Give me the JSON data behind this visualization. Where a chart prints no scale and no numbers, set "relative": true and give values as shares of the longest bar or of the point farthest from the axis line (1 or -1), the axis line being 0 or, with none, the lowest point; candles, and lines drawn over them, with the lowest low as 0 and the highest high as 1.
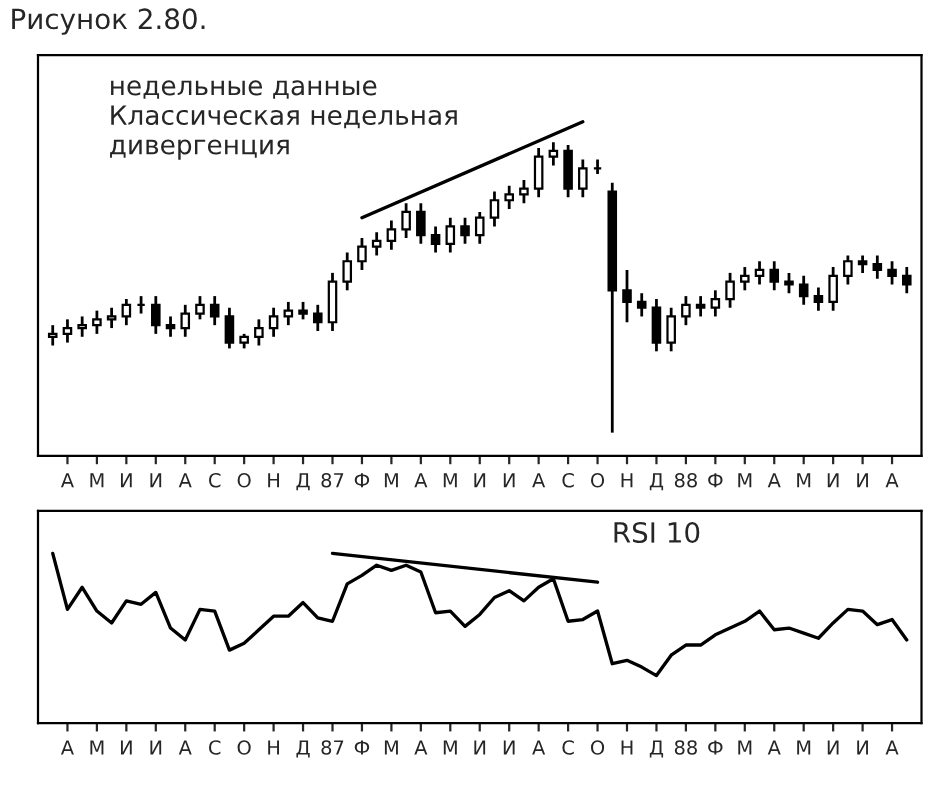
{
  "chart_data": [
    {
      "type": "candlestick",
      "title": "Рисунок 2.80.",
      "annotations": [
        "недельные данные\nКлассическая недельная\nдивергенция"
      ],
      "relative": true,
      "tick_labels": "x",
      "grid": false,
      "categories": [
        null,
        "А",
        null,
        "М",
        null,
        "И",
        null,
        "И",
        null,
        "А",
        null,
        "С",
        null,
        "О",
        null,
        "Н",
        null,
        "Д",
        null,
        "87",
        null,
        "Ф",
        null,
        "М",
        null,
        "А",
        null,
        "М",
        null,
        "И",
        null,
        "И",
        null,
        "А",
        null,
        "С",
        null,
        "О",
        null,
        "Н",
        null,
        "Д",
        null,
        "88",
        null,
        "Ф",
        null,
        "М",
        null,
        "А",
        null,
        "М",
        null,
        "И",
        null,
        "И",
        null,
        "А",
        null
      ],
      "color": "#000000",
      "ohlc": [
        [
          0.33,
          0.37,
          0.3,
          0.34
        ],
        [
          0.34,
          0.39,
          0.31,
          0.36
        ],
        [
          0.36,
          0.4,
          0.33,
          0.37
        ],
        [
          0.37,
          0.42,
          0.34,
          0.39
        ],
        [
          0.39,
          0.43,
          0.36,
          0.4
        ],
        [
          0.4,
          0.46,
          0.37,
          0.44
        ],
        [
          0.44,
          0.47,
          0.41,
          0.44
        ],
        [
          0.44,
          0.47,
          0.34,
          0.37
        ],
        [
          0.37,
          0.4,
          0.33,
          0.36
        ],
        [
          0.36,
          0.44,
          0.33,
          0.41
        ],
        [
          0.41,
          0.47,
          0.39,
          0.44
        ],
        [
          0.44,
          0.47,
          0.37,
          0.4
        ],
        [
          0.4,
          0.43,
          0.29,
          0.31
        ],
        [
          0.31,
          0.34,
          0.29,
          0.33
        ],
        [
          0.33,
          0.39,
          0.3,
          0.36
        ],
        [
          0.36,
          0.43,
          0.33,
          0.4
        ],
        [
          0.4,
          0.45,
          0.37,
          0.42
        ],
        [
          0.42,
          0.45,
          0.39,
          0.41
        ],
        [
          0.41,
          0.44,
          0.35,
          0.38
        ],
        [
          0.38,
          0.55,
          0.35,
          0.52
        ],
        [
          0.52,
          0.62,
          0.49,
          0.59
        ],
        [
          0.59,
          0.67,
          0.56,
          0.64
        ],
        [
          0.64,
          0.69,
          0.61,
          0.66
        ],
        [
          0.66,
          0.73,
          0.63,
          0.7
        ],
        [
          0.7,
          0.79,
          0.67,
          0.76
        ],
        [
          0.76,
          0.79,
          0.65,
          0.68
        ],
        [
          0.68,
          0.71,
          0.62,
          0.65
        ],
        [
          0.65,
          0.74,
          0.62,
          0.71
        ],
        [
          0.71,
          0.74,
          0.65,
          0.68
        ],
        [
          0.68,
          0.76,
          0.65,
          0.74
        ],
        [
          0.74,
          0.83,
          0.71,
          0.8
        ],
        [
          0.8,
          0.85,
          0.77,
          0.82
        ],
        [
          0.82,
          0.87,
          0.79,
          0.84
        ],
        [
          0.84,
          0.98,
          0.81,
          0.95
        ],
        [
          0.95,
          1.0,
          0.92,
          0.97
        ],
        [
          0.97,
          0.99,
          0.81,
          0.84
        ],
        [
          0.84,
          0.94,
          0.81,
          0.91
        ],
        [
          0.91,
          0.94,
          0.89,
          0.91
        ],
        [
          0.83,
          0.86,
          0.0,
          0.49
        ],
        [
          0.49,
          0.56,
          0.38,
          0.45
        ],
        [
          0.45,
          0.48,
          0.4,
          0.43
        ],
        [
          0.43,
          0.46,
          0.28,
          0.31
        ],
        [
          0.31,
          0.43,
          0.28,
          0.4
        ],
        [
          0.4,
          0.47,
          0.37,
          0.44
        ],
        [
          0.44,
          0.47,
          0.4,
          0.43
        ],
        [
          0.43,
          0.49,
          0.4,
          0.46
        ],
        [
          0.46,
          0.55,
          0.43,
          0.52
        ],
        [
          0.52,
          0.57,
          0.49,
          0.54
        ],
        [
          0.54,
          0.59,
          0.51,
          0.56
        ],
        [
          0.56,
          0.59,
          0.49,
          0.52
        ],
        [
          0.52,
          0.55,
          0.48,
          0.51
        ],
        [
          0.51,
          0.54,
          0.44,
          0.47
        ],
        [
          0.47,
          0.5,
          0.42,
          0.45
        ],
        [
          0.45,
          0.57,
          0.42,
          0.54
        ],
        [
          0.54,
          0.61,
          0.51,
          0.59
        ],
        [
          0.59,
          0.61,
          0.55,
          0.58
        ],
        [
          0.58,
          0.61,
          0.53,
          0.56
        ],
        [
          0.56,
          0.59,
          0.51,
          0.54
        ],
        [
          0.54,
          0.57,
          0.48,
          0.51
        ]
      ],
      "series": [
        {
          "type": "line",
          "color": "#000000",
          "values": [
            null,
            null,
            null,
            null,
            null,
            null,
            null,
            null,
            null,
            null,
            null,
            null,
            null,
            null,
            null,
            null,
            null,
            null,
            null,
            null,
            null,
            0.74,
            null,
            null,
            null,
            null,
            null,
            null,
            null,
            null,
            null,
            null,
            null,
            null,
            null,
            null,
            1.07,
            null,
            null,
            null,
            null,
            null,
            null,
            null,
            null,
            null,
            null,
            null,
            null,
            null,
            null,
            null,
            null,
            null,
            null,
            null,
            null,
            null,
            null
          ]
        }
      ]
    },
    {
      "type": "line",
      "annotations": [
        "RSI 10"
      ],
      "relative": true,
      "tick_labels": "x",
      "grid": false,
      "categories": [
        null,
        "А",
        null,
        "М",
        null,
        "И",
        null,
        "И",
        null,
        "А",
        null,
        "С",
        null,
        "О",
        null,
        "Н",
        null,
        "Д",
        null,
        "87",
        null,
        "Ф",
        null,
        "М",
        null,
        "А",
        null,
        "М",
        null,
        "И",
        null,
        "И",
        null,
        "А",
        null,
        "С",
        null,
        "О",
        null,
        "Н",
        null,
        "Д",
        null,
        "88",
        null,
        "Ф",
        null,
        "М",
        null,
        "А",
        null,
        "М",
        null,
        "И",
        null,
        "И",
        null,
        "А",
        null
      ],
      "series": [
        {
          "color": "#000000",
          "values": [
            1.0,
            0.67,
            0.8,
            0.66,
            0.59,
            0.72,
            0.7,
            0.77,
            0.56,
            0.49,
            0.67,
            0.66,
            0.43,
            0.47,
            0.55,
            0.63,
            0.63,
            0.71,
            0.62,
            0.6,
            0.82,
            0.87,
            0.93,
            0.9,
            0.93,
            0.89,
            0.65,
            0.66,
            0.57,
            0.64,
            0.74,
            0.78,
            0.72,
            0.8,
            0.85,
            0.6,
            0.61,
            0.66,
            0.35,
            0.37,
            0.33,
            0.28,
            0.4,
            0.46,
            0.46,
            0.52,
            0.56,
            0.6,
            0.66,
            0.55,
            0.56,
            0.53,
            0.5,
            0.59,
            0.67,
            0.66,
            0.58,
            0.61,
            0.49
          ]
        },
        {
          "type": "line",
          "color": "#000000",
          "values": [
            null,
            null,
            null,
            null,
            null,
            null,
            null,
            null,
            null,
            null,
            null,
            null,
            null,
            null,
            null,
            null,
            null,
            null,
            null,
            1.0,
            null,
            null,
            null,
            null,
            null,
            null,
            null,
            null,
            null,
            null,
            null,
            null,
            null,
            null,
            null,
            null,
            null,
            0.83,
            null,
            null,
            null,
            null,
            null,
            null,
            null,
            null,
            null,
            null,
            null,
            null,
            null,
            null,
            null,
            null,
            null,
            null,
            null,
            null,
            null
          ]
        }
      ]
    }
  ]
}
